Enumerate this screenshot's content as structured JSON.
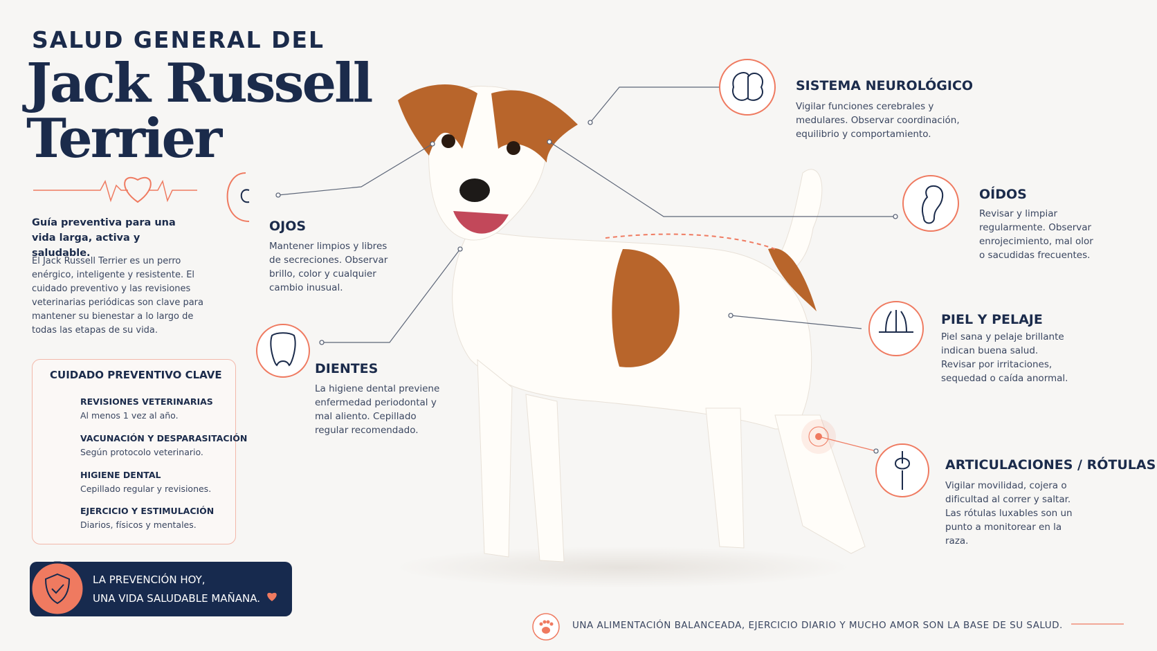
{
  "header": {
    "eyebrow": "SALUD GENERAL DEL",
    "title_line1": "Jack Russell",
    "title_line2": "Terrier"
  },
  "intro": {
    "lead": "Guía preventiva para una vida larga, activa y saludable.",
    "body": "El Jack Russell Terrier es un perro enérgico, inteligente y resistente. El cuidado preventivo y las revisiones veterinarias periódicas son clave para mantener su bienestar a lo largo de todas las etapas de su vida."
  },
  "preventive": {
    "title": "CUIDADO PREVENTIVO CLAVE",
    "items": [
      {
        "title": "REVISIONES VETERINARIAS",
        "text": "Al menos 1 vez al año."
      },
      {
        "title": "VACUNACIÓN Y DESPARASITACIÓN",
        "text": "Según protocolo veterinario."
      },
      {
        "title": "HIGIENE DENTAL",
        "text": "Cepillado regular y revisiones."
      },
      {
        "title": "EJERCICIO Y ESTIMULACIÓN",
        "text": "Diarios, físicos y mentales."
      }
    ]
  },
  "banner": {
    "lines": [
      "LA PREVENCIÓN HOY,",
      "UNA VIDA SALUDABLE MAÑANA."
    ]
  },
  "sections": [
    {
      "title": "OJOS",
      "text": "Mantener limpios y libres de secreciones. Observar brillo, color y cualquier cambio inusual."
    },
    {
      "title": "DIENTES",
      "text": "La higiene dental previene enfermedad periodontal y mal aliento. Cepillado regular recomendado."
    },
    {
      "title": "SISTEMA NEUROLÓGICO",
      "text": "Vigilar funciones cerebrales y medulares. Observar coordinación, equilibrio y comportamiento."
    },
    {
      "title": "OÍDOS",
      "text": "Revisar y limpiar regularmente. Observar enrojecimiento, mal olor o sacudidas frecuentes."
    },
    {
      "title": "PIEL Y PELAJE",
      "text": "Piel sana y pelaje brillante indican buena salud. Revisar por irritaciones, sequedad o caída anormal."
    },
    {
      "title": "ARTICULACIONES / RÓTULAS",
      "text": "Vigilar movilidad, cojera o dificultad al correr y saltar. Las rótulas luxables son un punto a monitorear en la raza."
    }
  ],
  "footer": {
    "text": "UNA ALIMENTACIÓN BALANCEADA, EJERCICIO DIARIO Y MUCHO AMOR SON LA BASE DE SU SALUD."
  }
}
